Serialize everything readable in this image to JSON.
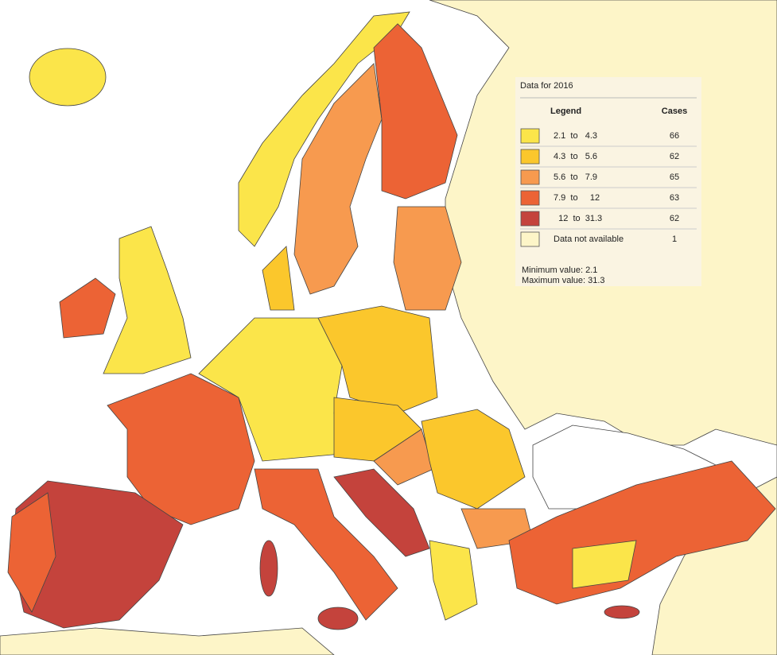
{
  "legend": {
    "title": "Data for 2016",
    "header_class": "Legend",
    "header_cases": "Cases",
    "classes": [
      {
        "label": "2.1  to   4.3",
        "cases": "66",
        "color": "#fbe54a"
      },
      {
        "label": "4.3  to   5.6",
        "cases": "62",
        "color": "#fbc72c"
      },
      {
        "label": "5.6  to   7.9",
        "cases": "65",
        "color": "#f79a4f"
      },
      {
        "label": "7.9  to     12",
        "cases": "63",
        "color": "#ec6335"
      },
      {
        "label": "  12  to  31.3",
        "cases": "62",
        "color": "#c4433c"
      },
      {
        "label": "Data not available",
        "cases": "1",
        "color": "#fdf5c8"
      }
    ],
    "minimum": "Minimum value: 2.1",
    "maximum": "Maximum value: 31.3"
  }
}
